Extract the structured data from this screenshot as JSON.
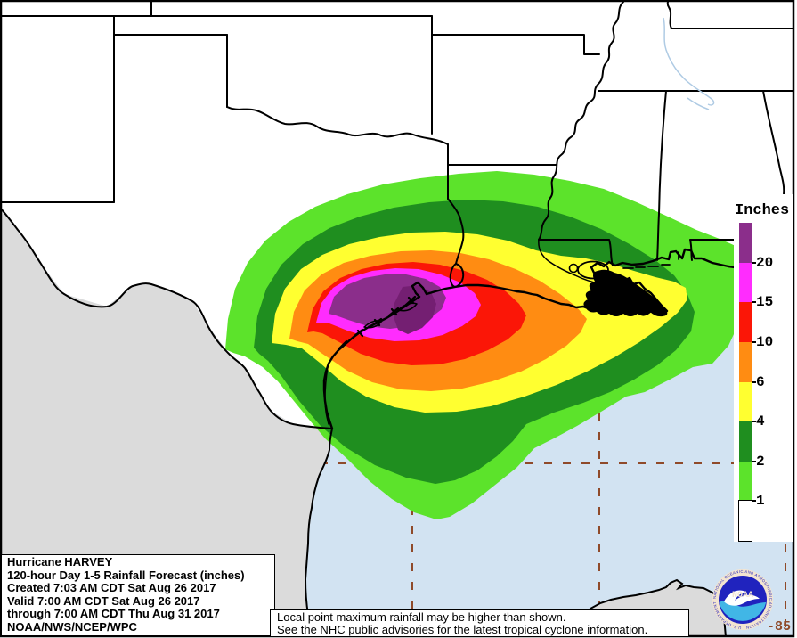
{
  "legend": {
    "title": "Inches",
    "unit": "inches",
    "blocks": [
      {
        "color": "#8B2E8B",
        "label": "20"
      },
      {
        "color": "#FF2CFE",
        "label": "15"
      },
      {
        "color": "#FB1607",
        "label": "10"
      },
      {
        "color": "#FF8C12",
        "label": "6"
      },
      {
        "color": "#FFFF30",
        "label": "4"
      },
      {
        "color": "#1F8E1F",
        "label": "2"
      },
      {
        "color": "#5CE32B",
        "label": "1"
      },
      {
        "color": "#FFFFFF",
        "label": null
      }
    ]
  },
  "title_block": {
    "lines": [
      "Hurricane HARVEY",
      "120-hour Day 1-5 Rainfall Forecast (inches)",
      "Created 7:03 AM CDT Sat Aug 26 2017",
      "Valid 7:00 AM CDT Sat Aug 26 2017",
      "through 7:00 AM CDT Thu Aug 31 2017",
      "NOAA/NWS/NCEP/WPC"
    ]
  },
  "note_box": {
    "lines": [
      "Local point maximum rainfall may be higher than shown.",
      "See the NHC public advisories for the latest tropical cyclone information."
    ]
  },
  "grid": {
    "longitude_label": "-85",
    "line_color": "#8F4A2A"
  },
  "noaa_logo": {
    "text": "NOAA",
    "ring_text": "NATIONAL OCEANIC AND ATMOSPHERIC ADMINISTRATION · U.S. DEPARTMENT OF COMMERCE"
  },
  "map_colors": {
    "water": "#D2E3F2",
    "us_land": "#FFFFFF",
    "mexico_land": "#DBDBDB",
    "inner_purple": "#741F72",
    "border_line": "#000000",
    "river": "#AFCBE4"
  }
}
